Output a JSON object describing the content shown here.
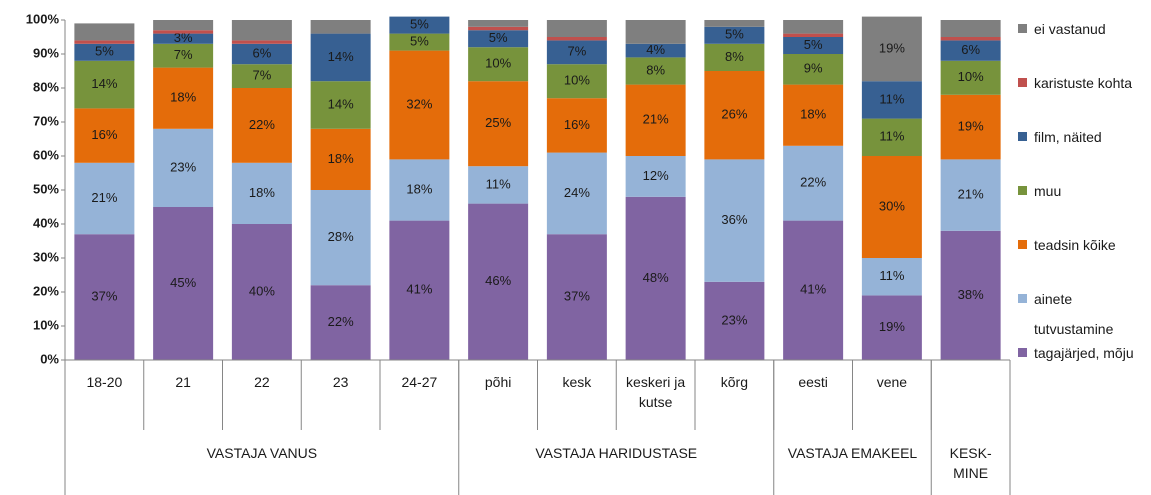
{
  "chart_data": {
    "type": "stacked-bar",
    "groups": [
      {
        "name": "VASTAJA VANUS",
        "categories": [
          "18-20",
          "21",
          "22",
          "23",
          "24-27"
        ]
      },
      {
        "name": "VASTAJA HARIDUSTASE",
        "categories": [
          "põhi",
          "kesk",
          "keskeri ja kutse",
          "kõrg"
        ]
      },
      {
        "name": "VASTAJA EMAKEEL",
        "categories": [
          "eesti",
          "vene"
        ]
      },
      {
        "name": "KESK-MINE",
        "categories": [
          null
        ]
      }
    ],
    "series": [
      {
        "name": "tagajärjed, mõju",
        "color": "#8064a2",
        "values": [
          37,
          45,
          40,
          22,
          41,
          46,
          37,
          48,
          23,
          41,
          19,
          38
        ],
        "value_labels": [
          "37%",
          "45%",
          "40%",
          "22%",
          "41%",
          "46%",
          "37%",
          "48%",
          "23%",
          "41%",
          "19%",
          "38%"
        ]
      },
      {
        "name": "ainete tutvustamine",
        "color": "#95b3d7",
        "values": [
          21,
          23,
          18,
          28,
          18,
          11,
          24,
          12,
          36,
          22,
          11,
          21
        ],
        "value_labels": [
          "21%",
          "23%",
          "18%",
          "28%",
          "18%",
          "11%",
          "24%",
          "12%",
          "36%",
          "22%",
          "11%",
          "21%"
        ]
      },
      {
        "name": "teadsin kõike",
        "color": "#e46c0a",
        "values": [
          16,
          18,
          22,
          18,
          32,
          25,
          16,
          21,
          26,
          18,
          30,
          19
        ],
        "value_labels": [
          "16%",
          "18%",
          "22%",
          "18%",
          "32%",
          "25%",
          "16%",
          "21%",
          "26%",
          "18%",
          "30%",
          "19%"
        ]
      },
      {
        "name": "muu",
        "color": "#77933c",
        "values": [
          14,
          7,
          7,
          14,
          5,
          10,
          10,
          8,
          8,
          9,
          11,
          10
        ],
        "value_labels": [
          "14%",
          "7%",
          "7%",
          "14%",
          "5%",
          "10%",
          "10%",
          "8%",
          "8%",
          "9%",
          "11%",
          "10%"
        ]
      },
      {
        "name": "film, näited",
        "color": "#376092",
        "values": [
          5,
          3,
          6,
          14,
          5,
          5,
          7,
          4,
          5,
          5,
          11,
          6
        ],
        "value_labels": [
          "5%",
          "3%",
          "6%",
          "14%",
          "5%",
          "5%",
          "7%",
          "4%",
          "5%",
          "5%",
          "11%",
          "6%"
        ]
      },
      {
        "name": "karistuste kohta",
        "color": "#c0504d",
        "values": [
          1,
          1,
          1,
          0,
          0,
          1,
          1,
          0,
          0,
          1,
          0,
          1
        ],
        "value_labels": [
          null,
          null,
          null,
          null,
          null,
          null,
          null,
          null,
          null,
          null,
          null,
          null
        ]
      },
      {
        "name": "ei vastanud",
        "color": "#7f7f7f",
        "values": [
          5,
          3,
          6,
          4,
          0,
          2,
          5,
          7,
          2,
          4,
          19,
          5
        ],
        "value_labels": [
          null,
          null,
          null,
          null,
          null,
          null,
          null,
          null,
          null,
          null,
          "19%",
          null
        ]
      }
    ],
    "ylim": [
      0,
      100
    ],
    "yticks": [
      {
        "value": 0,
        "label": "0%"
      },
      {
        "value": 10,
        "label": "10%"
      },
      {
        "value": 20,
        "label": "20%"
      },
      {
        "value": 30,
        "label": "30%"
      },
      {
        "value": 40,
        "label": "40%"
      },
      {
        "value": 50,
        "label": "50%"
      },
      {
        "value": 60,
        "label": "60%"
      },
      {
        "value": 70,
        "label": "70%"
      },
      {
        "value": 80,
        "label": "80%"
      },
      {
        "value": 90,
        "label": "90%"
      },
      {
        "value": 100,
        "label": "100%"
      }
    ],
    "legend": "right"
  }
}
